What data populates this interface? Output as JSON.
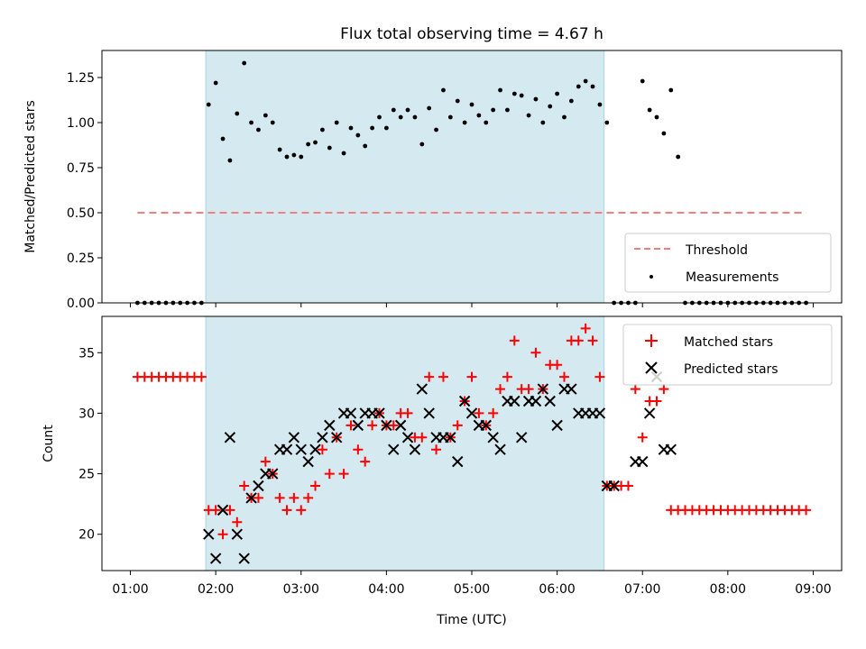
{
  "figure": {
    "title": "Flux total observing time = 4.67 h",
    "xlabel": "Time (UTC)",
    "x_ticks": [
      "01:00",
      "02:00",
      "03:00",
      "04:00",
      "05:00",
      "06:00",
      "07:00",
      "08:00",
      "09:00"
    ],
    "shaded_region_color": "#d5eaf0"
  },
  "chart_data": [
    {
      "type": "scatter",
      "ylabel": "Matched/Predicted stars",
      "xlim": [
        "00:40",
        "09:20"
      ],
      "ylim": [
        0,
        1.4
      ],
      "y_ticks": [
        "0.00",
        "0.25",
        "0.50",
        "0.75",
        "1.00",
        "1.25"
      ],
      "shaded_span": [
        "01:53",
        "06:33"
      ],
      "legend": {
        "placement": "lower-right",
        "entries": [
          "Threshold",
          "Measurements"
        ]
      },
      "series": [
        {
          "name": "Threshold",
          "style": "dashed-line",
          "color": "#f08080",
          "x": [
            "01:05",
            "08:55"
          ],
          "y": [
            0.5,
            0.5
          ]
        },
        {
          "name": "Measurements",
          "style": "dots",
          "color": "#000000",
          "points": [
            [
              "01:05",
              0
            ],
            [
              "01:10",
              0
            ],
            [
              "01:15",
              0
            ],
            [
              "01:20",
              0
            ],
            [
              "01:25",
              0
            ],
            [
              "01:30",
              0
            ],
            [
              "01:35",
              0
            ],
            [
              "01:40",
              0
            ],
            [
              "01:45",
              0
            ],
            [
              "01:50",
              0
            ],
            [
              "01:55",
              1.1
            ],
            [
              "02:00",
              1.22
            ],
            [
              "02:05",
              0.91
            ],
            [
              "02:10",
              0.79
            ],
            [
              "02:15",
              1.05
            ],
            [
              "02:20",
              1.33
            ],
            [
              "02:25",
              1.0
            ],
            [
              "02:30",
              0.96
            ],
            [
              "02:35",
              1.04
            ],
            [
              "02:40",
              1.0
            ],
            [
              "02:45",
              0.85
            ],
            [
              "02:50",
              0.81
            ],
            [
              "02:55",
              0.82
            ],
            [
              "03:00",
              0.81
            ],
            [
              "03:05",
              0.88
            ],
            [
              "03:10",
              0.89
            ],
            [
              "03:15",
              0.96
            ],
            [
              "03:20",
              0.86
            ],
            [
              "03:25",
              1.0
            ],
            [
              "03:30",
              0.83
            ],
            [
              "03:35",
              0.97
            ],
            [
              "03:40",
              0.93
            ],
            [
              "03:45",
              0.87
            ],
            [
              "03:50",
              0.97
            ],
            [
              "03:55",
              1.03
            ],
            [
              "04:00",
              0.97
            ],
            [
              "04:05",
              1.07
            ],
            [
              "04:10",
              1.03
            ],
            [
              "04:15",
              1.07
            ],
            [
              "04:20",
              1.03
            ],
            [
              "04:25",
              0.88
            ],
            [
              "04:30",
              1.08
            ],
            [
              "04:35",
              0.96
            ],
            [
              "04:40",
              1.18
            ],
            [
              "04:45",
              1.03
            ],
            [
              "04:50",
              1.12
            ],
            [
              "04:55",
              1.0
            ],
            [
              "05:00",
              1.1
            ],
            [
              "05:05",
              1.04
            ],
            [
              "05:10",
              1.0
            ],
            [
              "05:15",
              1.07
            ],
            [
              "05:20",
              1.18
            ],
            [
              "05:25",
              1.07
            ],
            [
              "05:30",
              1.16
            ],
            [
              "05:35",
              1.15
            ],
            [
              "05:40",
              1.04
            ],
            [
              "05:45",
              1.13
            ],
            [
              "05:50",
              1.0
            ],
            [
              "05:55",
              1.09
            ],
            [
              "06:00",
              1.16
            ],
            [
              "06:05",
              1.03
            ],
            [
              "06:10",
              1.12
            ],
            [
              "06:15",
              1.2
            ],
            [
              "06:20",
              1.23
            ],
            [
              "06:25",
              1.2
            ],
            [
              "06:30",
              1.1
            ],
            [
              "06:35",
              1.0
            ],
            [
              "06:40",
              0
            ],
            [
              "06:45",
              0
            ],
            [
              "06:50",
              0
            ],
            [
              "06:55",
              0
            ],
            [
              "07:00",
              1.23
            ],
            [
              "07:05",
              1.07
            ],
            [
              "07:10",
              1.03
            ],
            [
              "07:15",
              0.94
            ],
            [
              "07:20",
              1.18
            ],
            [
              "07:25",
              0.81
            ],
            [
              "07:30",
              0
            ],
            [
              "07:35",
              0
            ],
            [
              "07:40",
              0
            ],
            [
              "07:45",
              0
            ],
            [
              "07:50",
              0
            ],
            [
              "07:55",
              0
            ],
            [
              "08:00",
              0
            ],
            [
              "08:05",
              0
            ],
            [
              "08:10",
              0
            ],
            [
              "08:15",
              0
            ],
            [
              "08:20",
              0
            ],
            [
              "08:25",
              0
            ],
            [
              "08:30",
              0
            ],
            [
              "08:35",
              0
            ],
            [
              "08:40",
              0
            ],
            [
              "08:45",
              0
            ],
            [
              "08:50",
              0
            ],
            [
              "08:55",
              0
            ]
          ]
        }
      ]
    },
    {
      "type": "scatter",
      "ylabel": "Count",
      "xlim": [
        "00:40",
        "09:20"
      ],
      "ylim": [
        17,
        38
      ],
      "y_ticks": [
        "20",
        "25",
        "30",
        "35"
      ],
      "shaded_span": [
        "01:53",
        "06:33"
      ],
      "legend": {
        "placement": "top-right",
        "entries": [
          "Matched stars",
          "Predicted stars"
        ]
      },
      "series": [
        {
          "name": "Matched stars",
          "marker": "plus",
          "color": "#ff0000",
          "points": [
            [
              "01:05",
              33
            ],
            [
              "01:10",
              33
            ],
            [
              "01:15",
              33
            ],
            [
              "01:20",
              33
            ],
            [
              "01:25",
              33
            ],
            [
              "01:30",
              33
            ],
            [
              "01:35",
              33
            ],
            [
              "01:40",
              33
            ],
            [
              "01:45",
              33
            ],
            [
              "01:50",
              33
            ],
            [
              "01:55",
              22
            ],
            [
              "02:00",
              22
            ],
            [
              "02:05",
              20
            ],
            [
              "02:10",
              22
            ],
            [
              "02:15",
              21
            ],
            [
              "02:20",
              24
            ],
            [
              "02:25",
              23
            ],
            [
              "02:30",
              23
            ],
            [
              "02:35",
              26
            ],
            [
              "02:40",
              25
            ],
            [
              "02:45",
              23
            ],
            [
              "02:50",
              22
            ],
            [
              "02:55",
              23
            ],
            [
              "03:00",
              22
            ],
            [
              "03:05",
              23
            ],
            [
              "03:10",
              24
            ],
            [
              "03:15",
              27
            ],
            [
              "03:20",
              25
            ],
            [
              "03:25",
              28
            ],
            [
              "03:30",
              25
            ],
            [
              "03:35",
              29
            ],
            [
              "03:40",
              27
            ],
            [
              "03:45",
              26
            ],
            [
              "03:50",
              29
            ],
            [
              "03:55",
              30
            ],
            [
              "04:00",
              29
            ],
            [
              "04:05",
              29
            ],
            [
              "04:10",
              30
            ],
            [
              "04:15",
              30
            ],
            [
              "04:20",
              28
            ],
            [
              "04:25",
              28
            ],
            [
              "04:30",
              33
            ],
            [
              "04:35",
              27
            ],
            [
              "04:40",
              33
            ],
            [
              "04:45",
              28
            ],
            [
              "04:50",
              29
            ],
            [
              "04:55",
              31
            ],
            [
              "05:00",
              33
            ],
            [
              "05:05",
              30
            ],
            [
              "05:10",
              29
            ],
            [
              "05:15",
              30
            ],
            [
              "05:20",
              32
            ],
            [
              "05:25",
              33
            ],
            [
              "05:30",
              36
            ],
            [
              "05:35",
              32
            ],
            [
              "05:40",
              32
            ],
            [
              "05:45",
              35
            ],
            [
              "05:50",
              32
            ],
            [
              "05:55",
              34
            ],
            [
              "06:00",
              34
            ],
            [
              "06:05",
              33
            ],
            [
              "06:10",
              36
            ],
            [
              "06:15",
              36
            ],
            [
              "06:20",
              37
            ],
            [
              "06:25",
              36
            ],
            [
              "06:30",
              33
            ],
            [
              "06:35",
              24
            ],
            [
              "06:40",
              24
            ],
            [
              "06:45",
              24
            ],
            [
              "06:50",
              24
            ],
            [
              "06:55",
              32
            ],
            [
              "07:00",
              28
            ],
            [
              "07:05",
              31
            ],
            [
              "07:10",
              31
            ],
            [
              "07:15",
              32
            ],
            [
              "07:20",
              22
            ],
            [
              "07:25",
              22
            ],
            [
              "07:30",
              22
            ],
            [
              "07:35",
              22
            ],
            [
              "07:40",
              22
            ],
            [
              "07:45",
              22
            ],
            [
              "07:50",
              22
            ],
            [
              "07:55",
              22
            ],
            [
              "08:00",
              22
            ],
            [
              "08:05",
              22
            ],
            [
              "08:10",
              22
            ],
            [
              "08:15",
              22
            ],
            [
              "08:20",
              22
            ],
            [
              "08:25",
              22
            ],
            [
              "08:30",
              22
            ],
            [
              "08:35",
              22
            ],
            [
              "08:40",
              22
            ],
            [
              "08:45",
              22
            ],
            [
              "08:50",
              22
            ],
            [
              "08:55",
              22
            ]
          ]
        },
        {
          "name": "Predicted stars",
          "marker": "x",
          "color": "#000000",
          "points": [
            [
              "01:55",
              20
            ],
            [
              "02:00",
              18
            ],
            [
              "02:05",
              22
            ],
            [
              "02:10",
              28
            ],
            [
              "02:15",
              20
            ],
            [
              "02:20",
              18
            ],
            [
              "02:25",
              23
            ],
            [
              "02:30",
              24
            ],
            [
              "02:35",
              25
            ],
            [
              "02:40",
              25
            ],
            [
              "02:45",
              27
            ],
            [
              "02:50",
              27
            ],
            [
              "02:55",
              28
            ],
            [
              "03:00",
              27
            ],
            [
              "03:05",
              26
            ],
            [
              "03:10",
              27
            ],
            [
              "03:15",
              28
            ],
            [
              "03:20",
              29
            ],
            [
              "03:25",
              28
            ],
            [
              "03:30",
              30
            ],
            [
              "03:35",
              30
            ],
            [
              "03:40",
              29
            ],
            [
              "03:45",
              30
            ],
            [
              "03:50",
              30
            ],
            [
              "03:55",
              30
            ],
            [
              "04:00",
              29
            ],
            [
              "04:05",
              27
            ],
            [
              "04:10",
              29
            ],
            [
              "04:15",
              28
            ],
            [
              "04:20",
              27
            ],
            [
              "04:25",
              32
            ],
            [
              "04:30",
              30
            ],
            [
              "04:35",
              28
            ],
            [
              "04:40",
              28
            ],
            [
              "04:45",
              28
            ],
            [
              "04:50",
              26
            ],
            [
              "04:55",
              31
            ],
            [
              "05:00",
              30
            ],
            [
              "05:05",
              29
            ],
            [
              "05:10",
              29
            ],
            [
              "05:15",
              28
            ],
            [
              "05:20",
              27
            ],
            [
              "05:25",
              31
            ],
            [
              "05:30",
              31
            ],
            [
              "05:35",
              28
            ],
            [
              "05:40",
              31
            ],
            [
              "05:45",
              31
            ],
            [
              "05:50",
              32
            ],
            [
              "05:55",
              31
            ],
            [
              "06:00",
              29
            ],
            [
              "06:05",
              32
            ],
            [
              "06:10",
              32
            ],
            [
              "06:15",
              30
            ],
            [
              "06:20",
              30
            ],
            [
              "06:25",
              30
            ],
            [
              "06:30",
              30
            ],
            [
              "06:35",
              24
            ],
            [
              "06:40",
              24
            ],
            [
              "06:55",
              26
            ],
            [
              "07:00",
              26
            ],
            [
              "07:05",
              30
            ],
            [
              "07:10",
              33
            ],
            [
              "07:15",
              27
            ],
            [
              "07:20",
              27
            ]
          ]
        }
      ]
    }
  ]
}
